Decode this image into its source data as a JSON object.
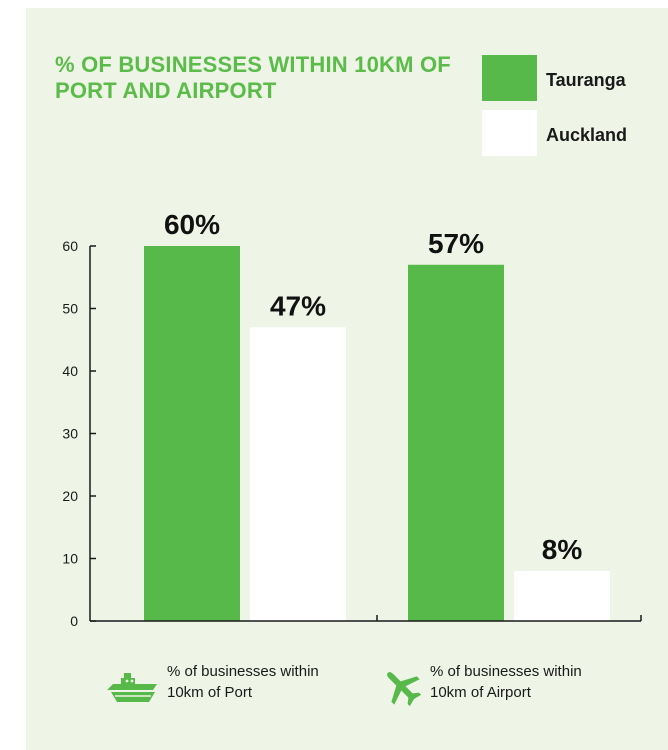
{
  "chart_data": {
    "type": "bar",
    "title": "% OF BUSINESSES WITHIN 10KM OF PORT AND AIRPORT",
    "categories": [
      "% of businesses within 10km of Port",
      "% of businesses within 10km of Airport"
    ],
    "category_lines": [
      [
        "% of businesses within",
        "10km of Port"
      ],
      [
        "% of businesses within",
        "10km of Airport"
      ]
    ],
    "category_icons": [
      "ship-icon",
      "airplane-icon"
    ],
    "series": [
      {
        "name": "Tauranga",
        "color": "#56b94a",
        "values": [
          60,
          57
        ],
        "labels": [
          "60%",
          "57%"
        ]
      },
      {
        "name": "Auckland",
        "color": "#ffffff",
        "values": [
          47,
          8
        ],
        "labels": [
          "47%",
          "8%"
        ]
      }
    ],
    "yticks": [
      "0",
      "10",
      "20",
      "30",
      "40",
      "50",
      "60"
    ],
    "ylim": [
      0,
      60
    ],
    "legend_position": "top-right",
    "grid": false,
    "xlabel": "",
    "ylabel": ""
  }
}
